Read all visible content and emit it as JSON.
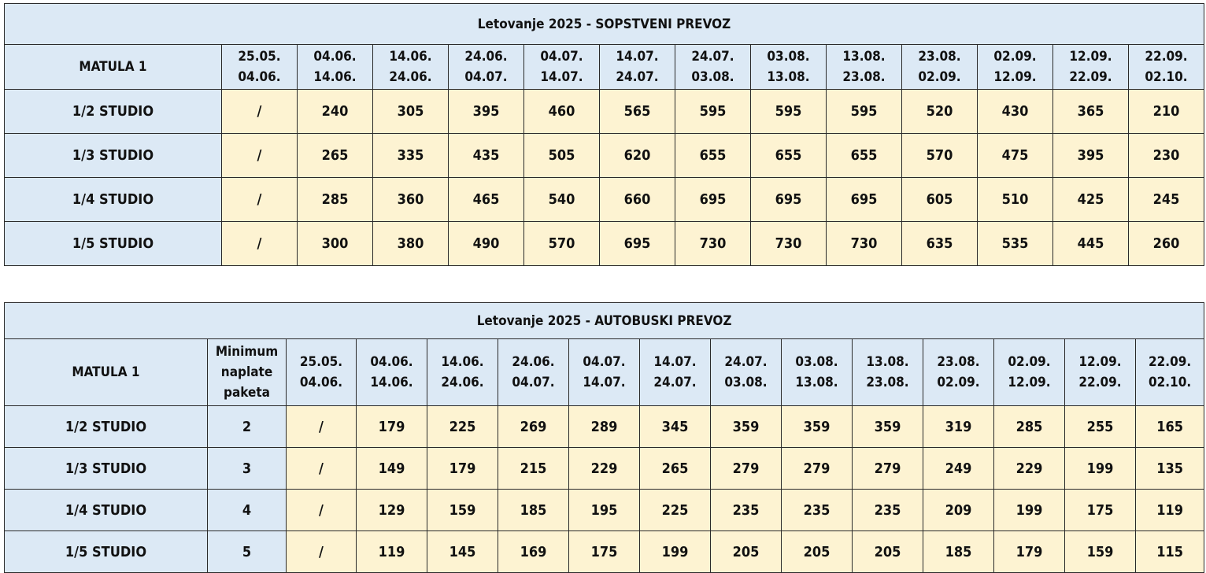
{
  "table1": {
    "title": "Letovanje 2025 - SOPSTVENI PREVOZ",
    "corner_label": "MATULA 1",
    "periods": [
      [
        "25.05.",
        "04.06."
      ],
      [
        "04.06.",
        "14.06."
      ],
      [
        "14.06.",
        "24.06."
      ],
      [
        "24.06.",
        "04.07."
      ],
      [
        "04.07.",
        "14.07."
      ],
      [
        "14.07.",
        "24.07."
      ],
      [
        "24.07.",
        "03.08."
      ],
      [
        "03.08.",
        "13.08."
      ],
      [
        "13.08.",
        "23.08."
      ],
      [
        "23.08.",
        "02.09."
      ],
      [
        "02.09.",
        "12.09."
      ],
      [
        "12.09.",
        "22.09."
      ],
      [
        "22.09.",
        "02.10."
      ]
    ],
    "rows": [
      {
        "label": "1/2 STUDIO",
        "values": [
          "/",
          "240",
          "305",
          "395",
          "460",
          "565",
          "595",
          "595",
          "595",
          "520",
          "430",
          "365",
          "210"
        ]
      },
      {
        "label": "1/3 STUDIO",
        "values": [
          "/",
          "265",
          "335",
          "435",
          "505",
          "620",
          "655",
          "655",
          "655",
          "570",
          "475",
          "395",
          "230"
        ]
      },
      {
        "label": "1/4 STUDIO",
        "values": [
          "/",
          "285",
          "360",
          "465",
          "540",
          "660",
          "695",
          "695",
          "695",
          "605",
          "510",
          "425",
          "245"
        ]
      },
      {
        "label": "1/5 STUDIO",
        "values": [
          "/",
          "300",
          "380",
          "490",
          "570",
          "695",
          "730",
          "730",
          "730",
          "635",
          "535",
          "445",
          "260"
        ]
      }
    ]
  },
  "table2": {
    "title": "Letovanje 2025 - AUTOBUSKI PREVOZ",
    "corner_label": "MATULA 1",
    "min_header": [
      "Minimum",
      "naplate",
      "paketa"
    ],
    "periods": [
      [
        "25.05.",
        "04.06."
      ],
      [
        "04.06.",
        "14.06."
      ],
      [
        "14.06.",
        "24.06."
      ],
      [
        "24.06.",
        "04.07."
      ],
      [
        "04.07.",
        "14.07."
      ],
      [
        "14.07.",
        "24.07."
      ],
      [
        "24.07.",
        "03.08."
      ],
      [
        "03.08.",
        "13.08."
      ],
      [
        "13.08.",
        "23.08."
      ],
      [
        "23.08.",
        "02.09."
      ],
      [
        "02.09.",
        "12.09."
      ],
      [
        "12.09.",
        "22.09."
      ],
      [
        "22.09.",
        "02.10."
      ]
    ],
    "rows": [
      {
        "label": "1/2 STUDIO",
        "min": "2",
        "values": [
          "/",
          "179",
          "225",
          "269",
          "289",
          "345",
          "359",
          "359",
          "359",
          "319",
          "285",
          "255",
          "165"
        ]
      },
      {
        "label": "1/3 STUDIO",
        "min": "3",
        "values": [
          "/",
          "149",
          "179",
          "215",
          "229",
          "265",
          "279",
          "279",
          "279",
          "249",
          "229",
          "199",
          "135"
        ]
      },
      {
        "label": "1/4 STUDIO",
        "min": "4",
        "values": [
          "/",
          "129",
          "159",
          "185",
          "195",
          "225",
          "235",
          "235",
          "235",
          "209",
          "199",
          "175",
          "119"
        ]
      },
      {
        "label": "1/5 STUDIO",
        "min": "5",
        "values": [
          "/",
          "119",
          "145",
          "169",
          "175",
          "199",
          "205",
          "205",
          "205",
          "185",
          "179",
          "159",
          "115"
        ]
      }
    ]
  }
}
